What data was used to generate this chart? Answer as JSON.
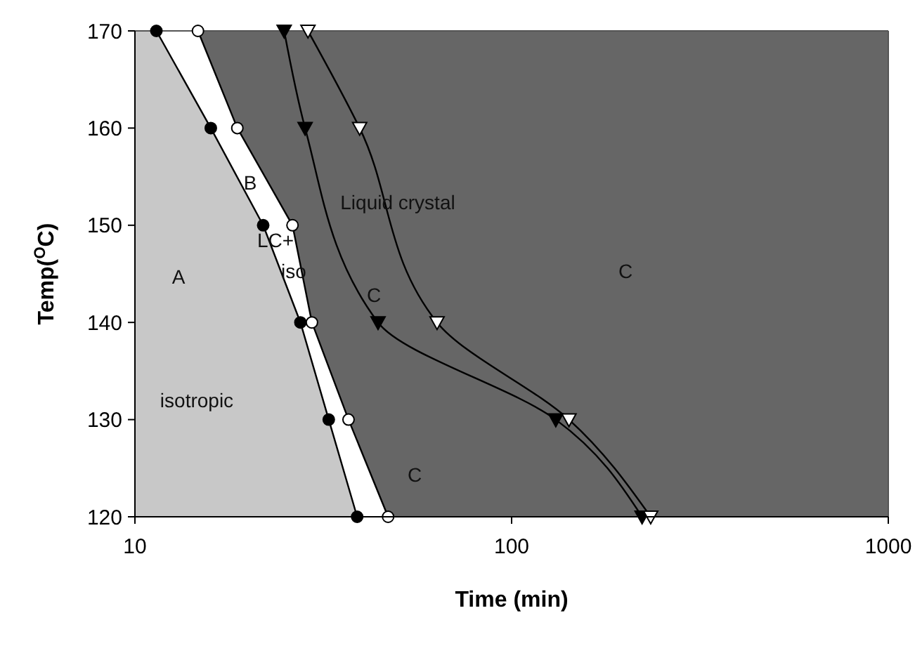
{
  "chart_data": {
    "type": "line",
    "xlabel": "Time (min)",
    "ylabel": "Temp($^{O}$C)",
    "log": "x",
    "xlim": [
      10,
      1000
    ],
    "xticks": [
      10,
      100,
      1000
    ],
    "ylim": [
      120,
      170
    ],
    "yticks": [
      120,
      130,
      140,
      150,
      160,
      170
    ],
    "grid": false,
    "series": [
      {
        "color": "#000000",
        "marker": "circle",
        "x": [
          11.4,
          15.9,
          21.9,
          27.5,
          32.7,
          38.9
        ],
        "values": [
          170,
          160,
          150,
          140,
          130,
          120
        ]
      },
      {
        "color": "#ffffff",
        "marker": "circle",
        "x": [
          14.7,
          18.7,
          26.2,
          29.5,
          36.9,
          47
        ],
        "values": [
          170,
          160,
          150,
          140,
          130,
          120
        ]
      },
      {
        "color": "#000000",
        "marker": "triangle",
        "x": [
          24.9,
          28.3,
          44.2,
          131,
          222
        ],
        "values": [
          170,
          160,
          140,
          130,
          120
        ]
      },
      {
        "color": "#ffffff",
        "marker": "triangle",
        "x": [
          28.8,
          39.5,
          63.4,
          142,
          234
        ],
        "values": [
          170,
          160,
          140,
          130,
          120
        ]
      }
    ],
    "annotations": [
      "A",
      "isotropic",
      "B",
      "LC+",
      "iso",
      "Liquid crystal",
      "C",
      "C",
      "C"
    ]
  }
}
